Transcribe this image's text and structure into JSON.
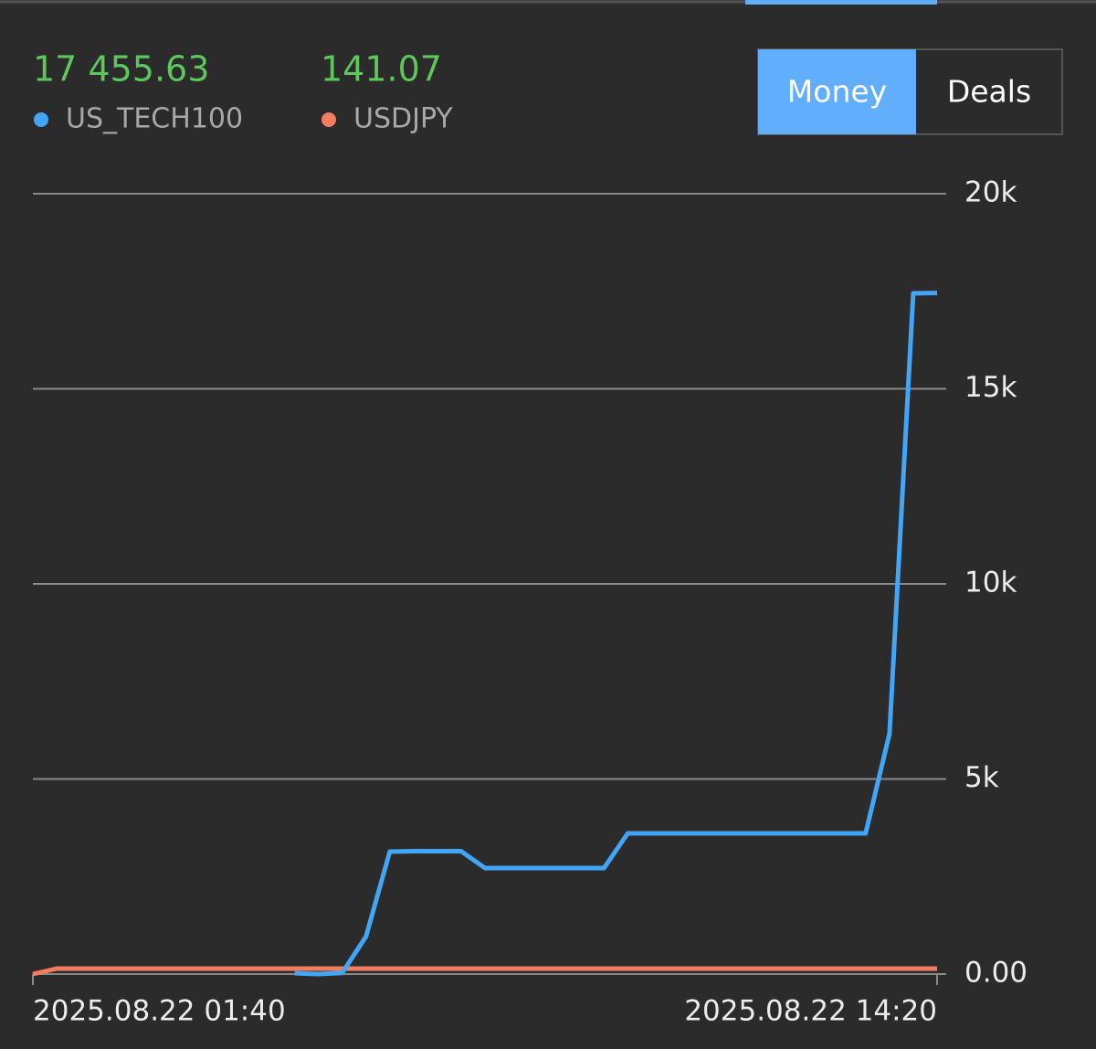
{
  "chart_data": {
    "type": "line",
    "tabs": [
      "Money",
      "Deals"
    ],
    "active_tab": 0,
    "categories": [
      "2025.08.22 01:40",
      null,
      null,
      null,
      null,
      null,
      null,
      null,
      null,
      null,
      null,
      null,
      null,
      null,
      null,
      null,
      null,
      null,
      null,
      null,
      null,
      null,
      null,
      null,
      null,
      null,
      null,
      null,
      null,
      null,
      null,
      null,
      null,
      null,
      null,
      null,
      null,
      null,
      "2025.08.22 14:20"
    ],
    "series": [
      {
        "name": "US_TECH100",
        "color": "#42a5f5",
        "last_label": "17 455.63",
        "values": [
          null,
          null,
          null,
          null,
          null,
          null,
          null,
          null,
          null,
          null,
          null,
          20,
          0,
          30,
          960,
          3138,
          3150,
          3150,
          3150,
          2717,
          2717,
          2717,
          2717,
          2717,
          2717,
          3607,
          3607,
          3607,
          3607,
          3607,
          3607,
          3607,
          3607,
          3607,
          3607,
          3607,
          6159,
          17447,
          17455.63
        ]
      },
      {
        "name": "USDJPY",
        "color": "#f47c5f",
        "last_label": "141.07",
        "values": [
          0,
          141.07,
          141.07,
          141.07,
          141.07,
          141.07,
          141.07,
          141.07,
          141.07,
          141.07,
          141.07,
          141.07,
          141.07,
          141.07,
          141.07,
          141.07,
          141.07,
          141.07,
          141.07,
          141.07,
          141.07,
          141.07,
          141.07,
          141.07,
          141.07,
          141.07,
          141.07,
          141.07,
          141.07,
          141.07,
          141.07,
          141.07,
          141.07,
          141.07,
          141.07,
          141.07,
          141.07,
          141.07,
          141.07
        ]
      }
    ],
    "ylim": [
      0,
      20000
    ],
    "yticks": [
      {
        "value": 0,
        "label": "0.00"
      },
      {
        "value": 5000,
        "label": "5k"
      },
      {
        "value": 10000,
        "label": "10k"
      },
      {
        "value": 15000,
        "label": "15k"
      },
      {
        "value": 20000,
        "label": "20k"
      }
    ],
    "grid": true
  }
}
